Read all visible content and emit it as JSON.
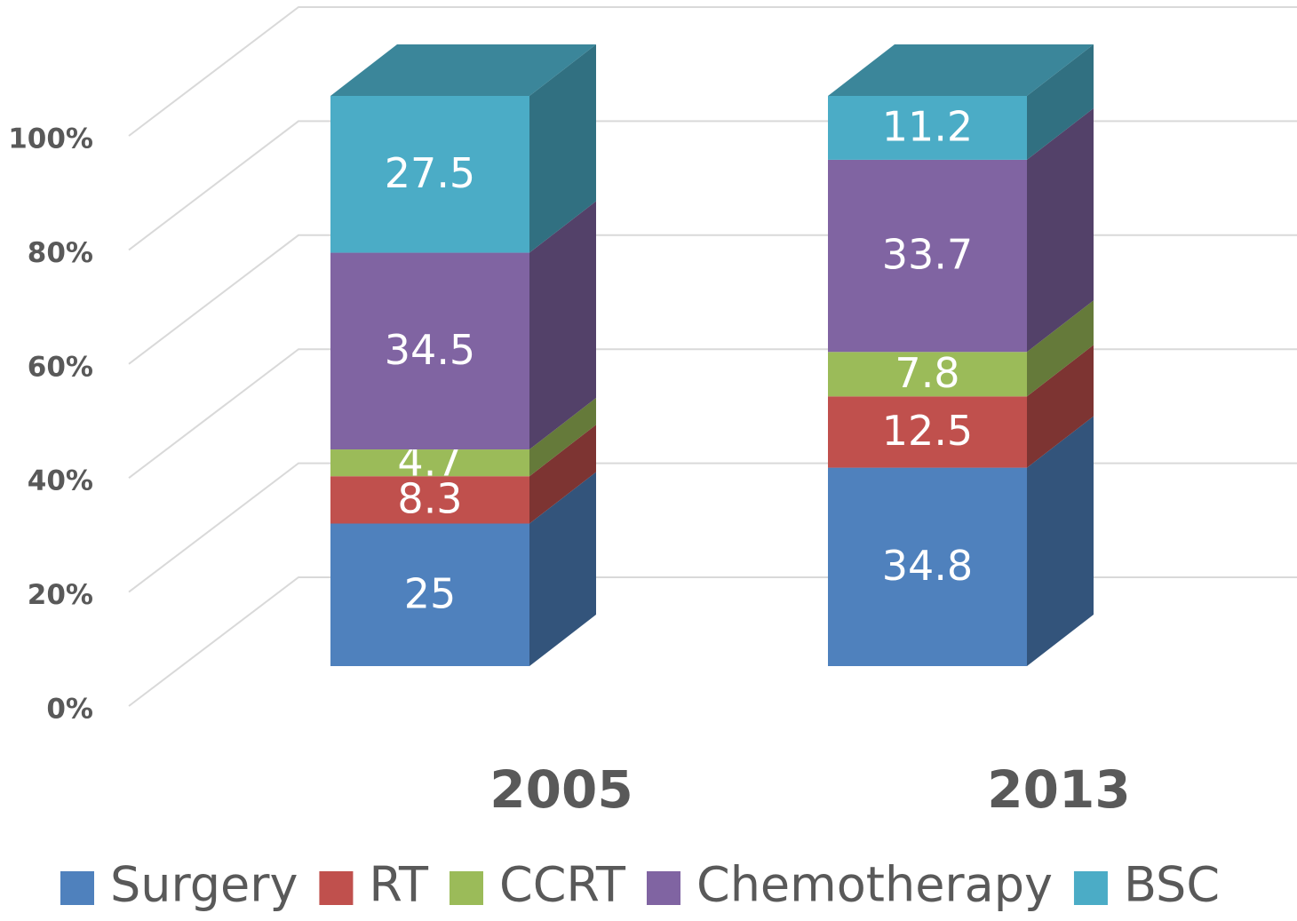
{
  "chart_data": {
    "type": "bar",
    "stacked": true,
    "categories": [
      "2005",
      "2013"
    ],
    "series": [
      {
        "name": "Surgery",
        "color": "#4f81bd",
        "values": [
          25,
          34.8
        ]
      },
      {
        "name": "RT",
        "color": "#c0504d",
        "values": [
          8.3,
          12.5
        ]
      },
      {
        "name": "CCRT",
        "color": "#9bbb59",
        "values": [
          4.7,
          7.8
        ]
      },
      {
        "name": "Chemotherapy",
        "color": "#8064a2",
        "values": [
          34.5,
          33.7
        ]
      },
      {
        "name": "BSC",
        "color": "#4bacc6",
        "values": [
          27.5,
          11.2
        ]
      }
    ],
    "ylim": [
      0,
      100
    ],
    "yticks": [
      {
        "value": 0,
        "label": "0%"
      },
      {
        "value": 20,
        "label": "20%"
      },
      {
        "value": 40,
        "label": "40%"
      },
      {
        "value": 60,
        "label": "60%"
      },
      {
        "value": 80,
        "label": "80%"
      },
      {
        "value": 100,
        "label": "100%"
      }
    ],
    "grid": true,
    "legend": "bottom"
  }
}
